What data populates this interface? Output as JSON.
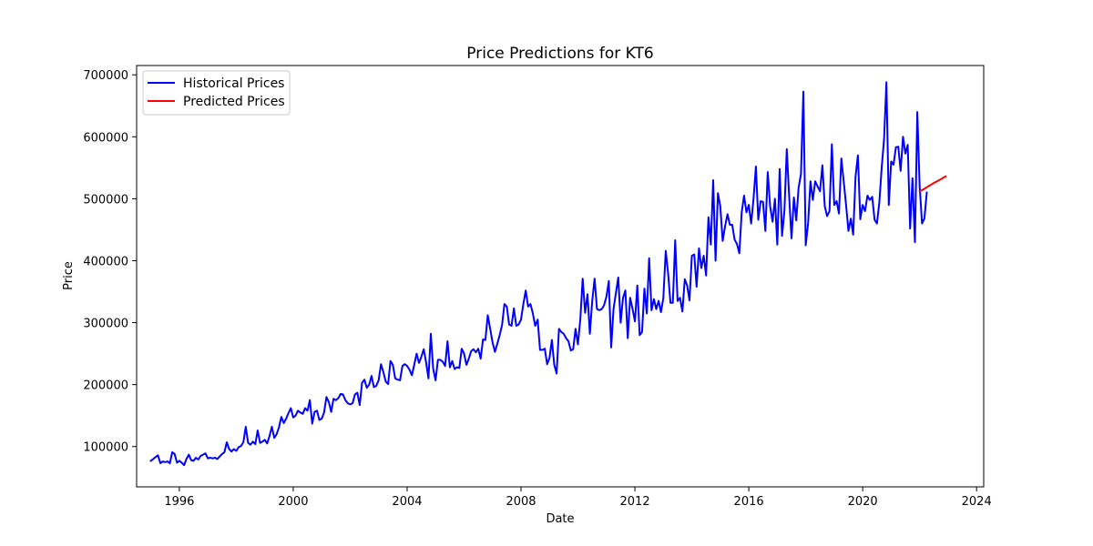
{
  "chart_data": {
    "type": "line",
    "title": "Price Predictions for KT6",
    "xlabel": "Date",
    "ylabel": "Price",
    "xlim": [
      "1994-07-01",
      "2024-04-01"
    ],
    "ylim": [
      35000,
      715000
    ],
    "x_ticks": [
      "1996",
      "2000",
      "2004",
      "2008",
      "2012",
      "2016",
      "2020",
      "2024"
    ],
    "y_ticks": [
      100000,
      200000,
      300000,
      400000,
      500000,
      600000,
      700000
    ],
    "y_tick_labels": [
      "100000",
      "200000",
      "300000",
      "400000",
      "500000",
      "600000",
      "700000"
    ],
    "legend_position": "top-left",
    "grid": false,
    "series": [
      {
        "name": "Historical Prices",
        "color": "#0000ff",
        "frequency": "monthly",
        "start": "1995-01",
        "values": [
          77000,
          80000,
          83000,
          86000,
          73000,
          76000,
          75000,
          76000,
          73000,
          91000,
          88000,
          74000,
          77000,
          74000,
          70000,
          80000,
          87000,
          78000,
          77000,
          82000,
          79000,
          85000,
          87000,
          89000,
          81000,
          82000,
          81000,
          82000,
          80000,
          84000,
          88000,
          91000,
          107000,
          96000,
          92000,
          96000,
          93000,
          99000,
          101000,
          107000,
          132000,
          106000,
          103000,
          108000,
          104000,
          126000,
          106000,
          108000,
          111000,
          105000,
          117000,
          132000,
          114000,
          120000,
          131000,
          148000,
          138000,
          145000,
          154000,
          162000,
          147000,
          150000,
          158000,
          155000,
          153000,
          162000,
          158000,
          175000,
          137000,
          156000,
          158000,
          143000,
          145000,
          155000,
          180000,
          172000,
          156000,
          177000,
          175000,
          178000,
          185000,
          184000,
          175000,
          170000,
          168000,
          170000,
          184000,
          187000,
          167000,
          203000,
          208000,
          195000,
          200000,
          214000,
          196000,
          198000,
          207000,
          233000,
          220000,
          205000,
          201000,
          238000,
          232000,
          210000,
          208000,
          207000,
          230000,
          233000,
          230000,
          224000,
          215000,
          232000,
          250000,
          235000,
          245000,
          257000,
          236000,
          210000,
          282000,
          225000,
          207000,
          240000,
          240000,
          237000,
          230000,
          270000,
          228000,
          238000,
          225000,
          228000,
          227000,
          258000,
          250000,
          232000,
          242000,
          254000,
          257000,
          252000,
          258000,
          242000,
          273000,
          272000,
          312000,
          290000,
          268000,
          253000,
          266000,
          280000,
          296000,
          330000,
          326000,
          297000,
          295000,
          323000,
          295000,
          297000,
          305000,
          330000,
          352000,
          326000,
          330000,
          315000,
          295000,
          305000,
          256000,
          256000,
          258000,
          233000,
          243000,
          272000,
          232000,
          218000,
          290000,
          285000,
          282000,
          275000,
          270000,
          255000,
          257000,
          290000,
          265000,
          305000,
          371000,
          316000,
          346000,
          282000,
          335000,
          371000,
          322000,
          320000,
          322000,
          328000,
          342000,
          367000,
          260000,
          322000,
          348000,
          373000,
          300000,
          340000,
          352000,
          275000,
          340000,
          322000,
          302000,
          360000,
          280000,
          285000,
          355000,
          315000,
          404000,
          320000,
          338000,
          322000,
          335000,
          317000,
          340000,
          416000,
          380000,
          332000,
          332000,
          433000,
          335000,
          340000,
          318000,
          370000,
          360000,
          336000,
          408000,
          410000,
          358000,
          420000,
          388000,
          408000,
          376000,
          470000,
          426000,
          530000,
          400000,
          509000,
          488000,
          432000,
          456000,
          475000,
          458000,
          458000,
          434000,
          427000,
          412000,
          478000,
          505000,
          478000,
          490000,
          460000,
          500000,
          552000,
          466000,
          496000,
          495000,
          448000,
          543000,
          488000,
          463000,
          500000,
          426000,
          548000,
          440000,
          480000,
          580000,
          504000,
          436000,
          502000,
          465000,
          518000,
          540000,
          673000,
          425000,
          460000,
          528000,
          498000,
          528000,
          520000,
          512000,
          554000,
          488000,
          472000,
          480000,
          588000,
          490000,
          496000,
          476000,
          565000,
          528000,
          490000,
          448000,
          468000,
          442000,
          536000,
          570000,
          467000,
          490000,
          480000,
          505000,
          498000,
          503000,
          466000,
          460000,
          494000,
          550000,
          596000,
          688000,
          490000,
          560000,
          555000,
          583000,
          584000,
          545000,
          600000,
          573000,
          587000,
          452000,
          533000,
          430000,
          640000,
          520000,
          460000,
          468000,
          510000
        ]
      },
      {
        "name": "Predicted Prices",
        "color": "#ff0000",
        "frequency": "monthly",
        "start": "2022-01",
        "values": [
          512000,
          514000,
          516000,
          518500,
          521000,
          523000,
          525500,
          527500,
          529500,
          531500,
          534000,
          536000
        ]
      }
    ]
  }
}
